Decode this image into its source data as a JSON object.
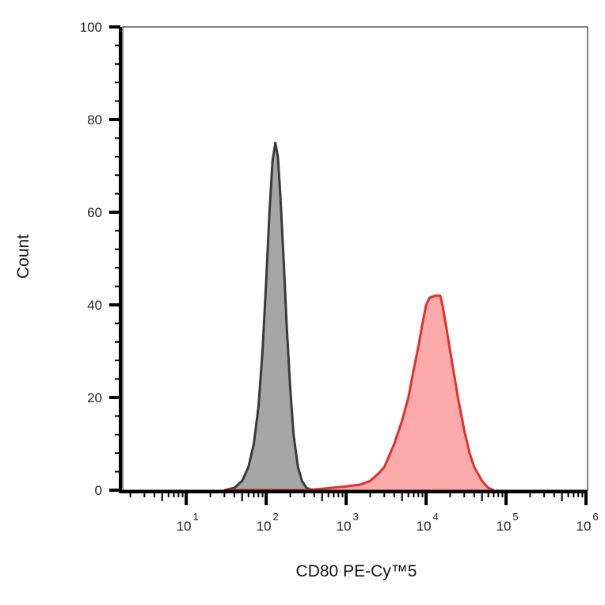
{
  "chart_data": {
    "type": "area",
    "title": "",
    "xlabel": "CD80 PE-Cy™5",
    "ylabel": "Count",
    "x_scale": "log",
    "xlim": [
      1.5,
      1000000
    ],
    "ylim": [
      0,
      100
    ],
    "x_ticks": [
      {
        "base": "10",
        "exp": "1",
        "value": 10
      },
      {
        "base": "10",
        "exp": "2",
        "value": 100
      },
      {
        "base": "10",
        "exp": "3",
        "value": 1000
      },
      {
        "base": "10",
        "exp": "4",
        "value": 10000
      },
      {
        "base": "10",
        "exp": "5",
        "value": 100000
      },
      {
        "base": "10",
        "exp": "6",
        "value": 1000000
      }
    ],
    "y_ticks": [
      "0",
      "20",
      "40",
      "60",
      "80",
      "100"
    ],
    "grid": false,
    "legend": false,
    "series": [
      {
        "color": "#3a3a3a",
        "fill": "#a6a6a6",
        "points": [
          [
            30,
            0
          ],
          [
            40,
            0.5
          ],
          [
            50,
            2
          ],
          [
            60,
            5
          ],
          [
            70,
            10
          ],
          [
            80,
            18
          ],
          [
            90,
            30
          ],
          [
            100,
            45
          ],
          [
            110,
            60
          ],
          [
            120,
            71
          ],
          [
            130,
            75
          ],
          [
            140,
            72
          ],
          [
            150,
            64
          ],
          [
            165,
            50
          ],
          [
            180,
            36
          ],
          [
            200,
            22
          ],
          [
            220,
            12
          ],
          [
            250,
            5
          ],
          [
            280,
            2
          ],
          [
            320,
            0.5
          ],
          [
            380,
            0
          ]
        ]
      },
      {
        "color": "#e03030",
        "fill": "#fcaaaa",
        "points": [
          [
            30,
            0
          ],
          [
            100,
            0
          ],
          [
            300,
            0
          ],
          [
            500,
            0.3
          ],
          [
            1000,
            0.8
          ],
          [
            1500,
            1.2
          ],
          [
            2000,
            2
          ],
          [
            2500,
            3.5
          ],
          [
            3000,
            5
          ],
          [
            4000,
            10
          ],
          [
            5000,
            15
          ],
          [
            6000,
            20
          ],
          [
            7000,
            26
          ],
          [
            8000,
            31
          ],
          [
            9000,
            36
          ],
          [
            10000,
            40
          ],
          [
            11000,
            41.5
          ],
          [
            13000,
            42
          ],
          [
            15000,
            42
          ],
          [
            16000,
            40
          ],
          [
            18000,
            35
          ],
          [
            20000,
            30
          ],
          [
            25000,
            20
          ],
          [
            30000,
            13
          ],
          [
            35000,
            8
          ],
          [
            40000,
            5
          ],
          [
            50000,
            2
          ],
          [
            60000,
            0.5
          ],
          [
            70000,
            0
          ]
        ]
      }
    ]
  }
}
